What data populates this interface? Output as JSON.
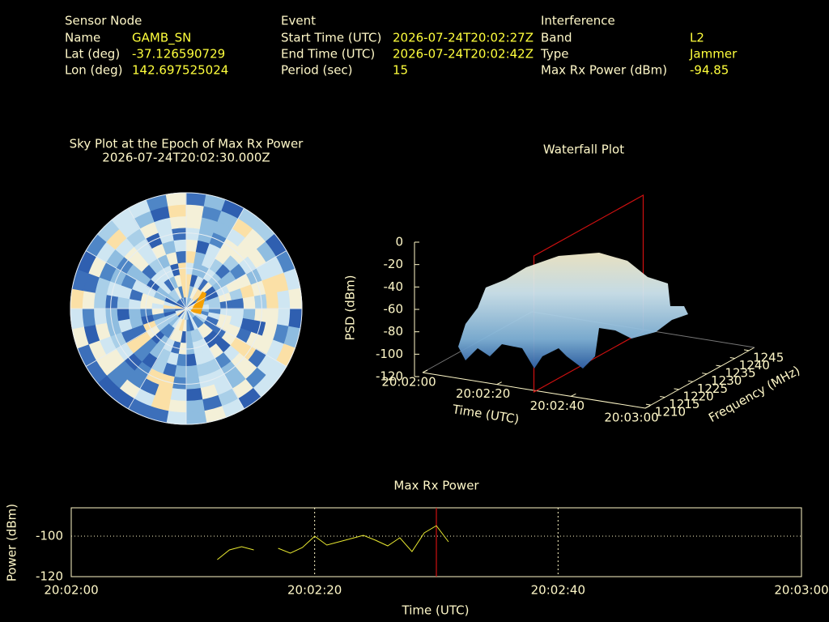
{
  "header": [
    {
      "title": "Sensor Node",
      "rows": [
        [
          "Name",
          "GAMB_SN"
        ],
        [
          "Lat (deg)",
          "-37.126590729"
        ],
        [
          "Lon (deg)",
          "142.697525024"
        ]
      ]
    },
    {
      "title": "Event",
      "rows": [
        [
          "Start Time (UTC)",
          "2026-07-24T20:02:27Z"
        ],
        [
          "End Time (UTC)",
          "2026-07-24T20:02:42Z"
        ],
        [
          "Period (sec)",
          "15"
        ]
      ]
    },
    {
      "title": "Interference",
      "rows": [
        [
          "Band",
          "L2"
        ],
        [
          "Type",
          "Jammer"
        ],
        [
          "Max Rx Power (dBm)",
          "-94.85"
        ]
      ]
    }
  ],
  "chart_data": [
    {
      "type": "polar-heatmap",
      "title": "Sky Plot at the Epoch of Max Rx Power",
      "subtitle": "2026-07-24T20:02:30.000Z"
    },
    {
      "type": "surface3d",
      "title": "Waterfall Plot",
      "zlabel": "PSD (dBm)",
      "xlabel": "Time (UTC)",
      "ylabel": "Frequency (MHz)",
      "zlim": [
        -120,
        0
      ],
      "zticks": [
        0,
        -20,
        -40,
        -60,
        -80,
        -100,
        -120
      ],
      "xlim": [
        "20:02:00",
        "20:03:00"
      ],
      "xticks": [
        "20:02:00",
        "20:02:20",
        "20:02:40",
        "20:03:00"
      ],
      "ylim": [
        1208,
        1247
      ],
      "yticks": [
        1210,
        1215,
        1220,
        1225,
        1230,
        1235,
        1240,
        1245
      ],
      "marker": "20:02:30",
      "marker_color": "#d01010"
    },
    {
      "type": "line",
      "title": "Max Rx Power",
      "xlabel": "Time (UTC)",
      "ylabel": "Power (dBm)",
      "x": [
        "20:02:12",
        "20:02:13",
        "20:02:14",
        "20:02:15",
        "20:02:16",
        "20:02:17",
        "20:02:18",
        "20:02:19",
        "20:02:20",
        "20:02:21",
        "20:02:22",
        "20:02:23",
        "20:02:24",
        "20:02:25",
        "20:02:26",
        "20:02:27",
        "20:02:28",
        "20:02:29",
        "20:02:30",
        "20:02:31"
      ],
      "series": [
        {
          "name": "Max Rx Power",
          "color": "#e8e830",
          "values": [
            -111.6,
            -106.8,
            -105.2,
            -106.8,
            null,
            -106,
            -108.4,
            -105.6,
            -100,
            -104.4,
            -102.8,
            -101.2,
            -99.6,
            -102,
            -104.8,
            -100.8,
            -107.6,
            -98.4,
            -94.85,
            -102.8
          ]
        }
      ],
      "xlim": [
        "20:02:00",
        "20:03:00"
      ],
      "xticks": [
        "20:02:00",
        "20:02:20",
        "20:02:40",
        "20:03:00"
      ],
      "ylim": [
        -120,
        -86
      ],
      "yticks": [
        -100,
        -120
      ],
      "grid": true,
      "marker": "20:02:30",
      "marker_color": "#d01010"
    }
  ]
}
